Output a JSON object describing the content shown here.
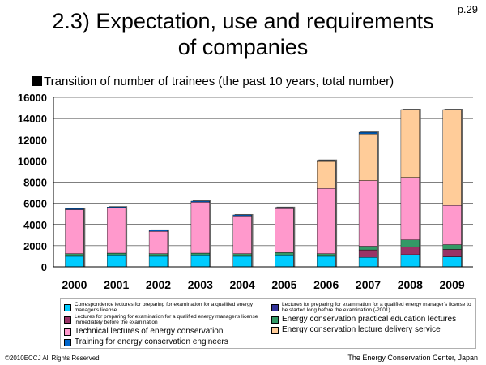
{
  "page_number": "p.29",
  "title_line1": "2.3) Expectation, use and requirements",
  "title_line2": "of companies",
  "subtitle": "Transition of number of trainees (the past 10 years, total number)",
  "footer_left": "©2010ECCJ All Rights Reserved",
  "footer_right": "The Energy Conservation Center, Japan",
  "chart_data": {
    "type": "bar",
    "stacked": true,
    "title": "Transition of number of trainees (the past 10 years, total number)",
    "categories": [
      "2000",
      "2001",
      "2002",
      "2003",
      "2004",
      "2005",
      "2006",
      "2007",
      "2008",
      "2009"
    ],
    "ylim": [
      0,
      16000
    ],
    "yticks": [
      0,
      2000,
      4000,
      6000,
      8000,
      10000,
      12000,
      14000,
      16000
    ],
    "ytick_labels": [
      "0",
      "2000",
      "4000",
      "6000",
      "8000",
      "10000",
      "12000",
      "14000",
      "16000"
    ],
    "series": [
      {
        "name": "Correspondence lectures for preparing for examination for a qualified energy manager's license",
        "color": "#00ccff",
        "values": [
          1000,
          1050,
          1000,
          1050,
          1000,
          1050,
          1000,
          900,
          1150,
          950
        ]
      },
      {
        "name": "Lectures for preparing for examination for a qualified energy manager's license to be started long before the examination (-2001)",
        "color": "#333399",
        "values": [
          0,
          0,
          0,
          0,
          0,
          0,
          0,
          0,
          0,
          0
        ]
      },
      {
        "name": "Lectures for preparing for examination for a qualified energy manager's license immediately before the examination",
        "color": "#993366",
        "values": [
          0,
          0,
          0,
          0,
          0,
          0,
          0,
          700,
          750,
          700
        ]
      },
      {
        "name": "Energy conservation practical education lectures",
        "color": "#339966",
        "values": [
          250,
          250,
          250,
          250,
          250,
          300,
          250,
          350,
          650,
          450
        ]
      },
      {
        "name": "Technical lectures of energy conservation",
        "color": "#ff99cc",
        "values": [
          4150,
          4250,
          2100,
          4800,
          3550,
          4150,
          6150,
          6200,
          5900,
          3700
        ]
      },
      {
        "name": "Energy conservation lecture delivery service",
        "color": "#ffcc99",
        "values": [
          0,
          0,
          0,
          0,
          0,
          0,
          2550,
          4400,
          6400,
          9050
        ]
      },
      {
        "name": "Training for energy conservation engineers",
        "color": "#0066cc",
        "values": [
          100,
          100,
          100,
          100,
          100,
          100,
          100,
          150,
          0,
          0
        ]
      }
    ]
  }
}
